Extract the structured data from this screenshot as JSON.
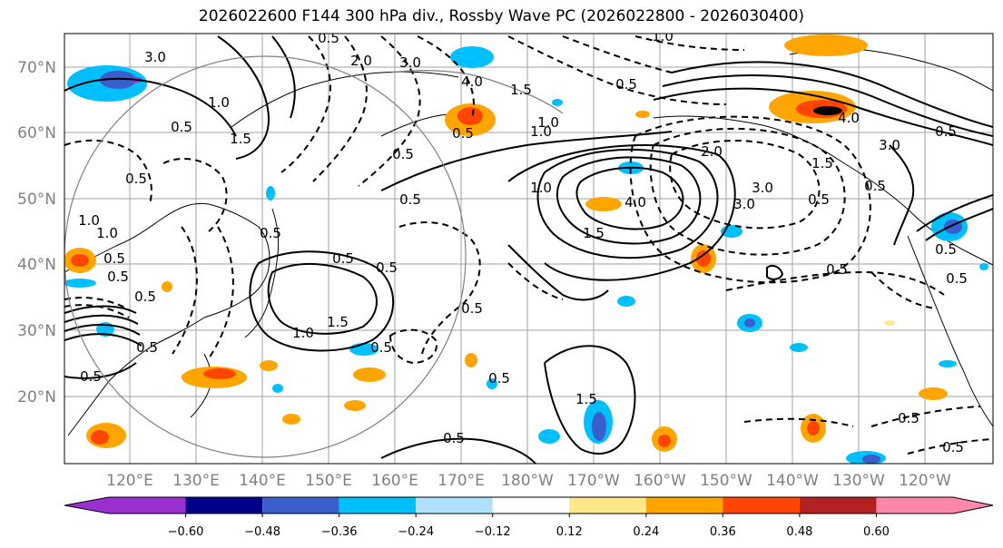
{
  "title": "2026022600 F144 300 hPa div., Rossby Wave PC (2026022800 - 2026030400)",
  "lat_labels": [
    "70°N",
    "60°N",
    "50°N",
    "40°N",
    "30°N",
    "20°N"
  ],
  "lon_labels": [
    "120°E",
    "130°E",
    "140°E",
    "150°E",
    "160°E",
    "170°E",
    "180°W",
    "170°W",
    "160°W",
    "150°W",
    "140°W",
    "130°W",
    "120°W"
  ],
  "colorbar": {
    "colors": [
      "#9b30d0",
      "#000088",
      "#3a5fcd",
      "#00bfff",
      "#b0e2ff",
      "#ffffff",
      "#ffe88a",
      "#ffa500",
      "#ff4500",
      "#b22222",
      "#ff88aa"
    ],
    "tick_labels": [
      "−0.60",
      "−0.48",
      "−0.36",
      "−0.24",
      "−0.12",
      "0.12",
      "0.24",
      "0.36",
      "0.48",
      "0.60"
    ]
  },
  "contour_labels": [
    "0.5",
    "3.0",
    "2.0",
    "3.0",
    "4.0",
    "1.5",
    "1.0",
    "1.5",
    "1.0",
    "0.5",
    "1.0",
    "2.0",
    "3.0",
    "4.0",
    "3.0",
    "1.5",
    "3.0",
    "1.5",
    "4.0",
    "0.5",
    "1.0",
    "0.5",
    "1.5",
    "0.5",
    "0.5",
    "0.5",
    "1.0",
    "0.5",
    "0.5",
    "0.5",
    "0.5",
    "0.5",
    "1.5",
    "0.5",
    "0.5",
    "0.5",
    "0.5",
    "0.5",
    "0.5",
    "0.5",
    "0.5",
    "0.5",
    "1.0",
    "0.5",
    "0.5",
    "0.5",
    "0.5",
    "1.0",
    "0.5",
    "0.5",
    "1.0"
  ]
}
